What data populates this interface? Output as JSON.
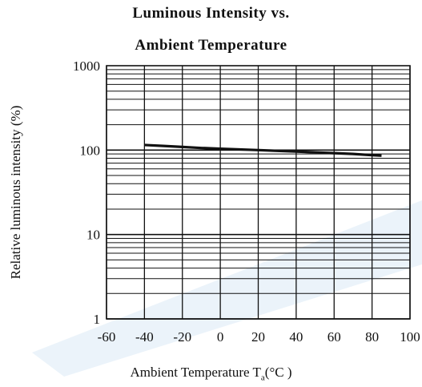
{
  "chart_data": {
    "type": "line",
    "title": "Luminous Intensity vs.",
    "subtitle": "Ambient Temperature",
    "xlabel": "Ambient Temperature T",
    "xlabel_sub": "a",
    "xlabel_unit": "(°C )",
    "ylabel": "Relative luminous intensity (%)",
    "xlim": [
      -60,
      100
    ],
    "ylim": [
      1,
      1000
    ],
    "yscale": "log",
    "grid": true,
    "x_ticks": [
      -60,
      -40,
      -20,
      0,
      20,
      40,
      60,
      80,
      100
    ],
    "x_tick_labels": [
      "-60",
      "-40",
      "-20",
      "0",
      "20",
      "40",
      "60",
      "80",
      "100"
    ],
    "y_ticks": [
      1,
      10,
      100,
      1000
    ],
    "y_tick_labels": [
      "1",
      "10",
      "100",
      "1000"
    ],
    "series": [
      {
        "x": [
          -40,
          -30,
          -20,
          -10,
          0,
          10,
          20,
          30,
          40,
          50,
          60,
          70,
          80,
          85
        ],
        "y": [
          115,
          112,
          109,
          106,
          104,
          102,
          100,
          98,
          96,
          94,
          92,
          90,
          87,
          86
        ],
        "color": "#111111"
      }
    ],
    "watermark_color": "#dbe9f6"
  }
}
